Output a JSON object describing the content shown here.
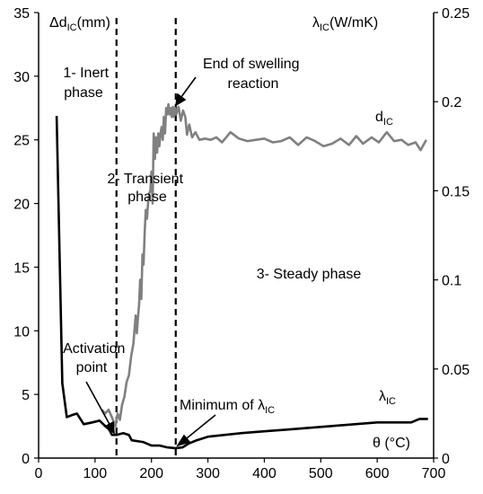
{
  "chart_data": {
    "type": "line",
    "x_axis": {
      "range": [
        0,
        700
      ],
      "ticks": [
        0,
        100,
        200,
        300,
        400,
        500,
        600,
        700
      ]
    },
    "y_left": {
      "label": "Δd",
      "label_sub": "IC",
      "label_unit": "(mm)",
      "range": [
        0,
        35
      ],
      "ticks": [
        0,
        5,
        10,
        15,
        20,
        25,
        30,
        35
      ]
    },
    "y_right": {
      "label": "λ",
      "label_sub": "IC",
      "label_unit": "(W/mK)",
      "range": [
        0,
        0.25
      ],
      "ticks": [
        "0",
        "0.05",
        "0.1",
        "0.15",
        "0.2",
        "0.25"
      ]
    },
    "grid": false,
    "vlines": [
      138,
      243
    ],
    "series": [
      {
        "name": "d",
        "name_sub": "IC",
        "axis": "left",
        "color": "#808080",
        "points": [
          [
            112,
            3.8
          ],
          [
            118,
            3.5
          ],
          [
            124,
            3.8
          ],
          [
            130,
            3.2
          ],
          [
            136,
            2.5
          ],
          [
            140,
            3.5
          ],
          [
            144,
            3.0
          ],
          [
            148,
            4.2
          ],
          [
            152,
            4.8
          ],
          [
            156,
            6.0
          ],
          [
            160,
            6.5
          ],
          [
            164,
            8.0
          ],
          [
            168,
            9.0
          ],
          [
            172,
            11.2
          ],
          [
            174,
            9.8
          ],
          [
            176,
            11.0
          ],
          [
            178,
            12.0
          ],
          [
            180,
            14.0
          ],
          [
            182,
            12.5
          ],
          [
            184,
            16.0
          ],
          [
            186,
            15.2
          ],
          [
            188,
            17.8
          ],
          [
            190,
            19.5
          ],
          [
            192,
            18.8
          ],
          [
            194,
            20.0
          ],
          [
            196,
            20.8
          ],
          [
            198,
            21.0
          ],
          [
            200,
            22.5
          ],
          [
            202,
            20.0
          ],
          [
            204,
            25.5
          ],
          [
            206,
            23.5
          ],
          [
            208,
            25.2
          ],
          [
            210,
            24.0
          ],
          [
            212,
            25.5
          ],
          [
            214,
            24.5
          ],
          [
            216,
            25.5
          ],
          [
            218,
            26.0
          ],
          [
            220,
            25.0
          ],
          [
            222,
            26.8
          ],
          [
            224,
            25.5
          ],
          [
            226,
            27.5
          ],
          [
            228,
            27.0
          ],
          [
            230,
            27.8
          ],
          [
            232,
            27.0
          ],
          [
            234,
            27.5
          ],
          [
            236,
            26.8
          ],
          [
            238,
            27.6
          ],
          [
            240,
            26.8
          ],
          [
            242,
            27.5
          ],
          [
            244,
            27.0
          ],
          [
            248,
            27.6
          ],
          [
            252,
            26.5
          ],
          [
            256,
            27.3
          ],
          [
            260,
            26.8
          ],
          [
            263,
            25.4
          ],
          [
            267,
            26.2
          ],
          [
            272,
            25.2
          ],
          [
            278,
            25.6
          ],
          [
            285,
            25.0
          ],
          [
            295,
            25.1
          ],
          [
            305,
            25.0
          ],
          [
            315,
            25.2
          ],
          [
            325,
            24.8
          ],
          [
            340,
            25.6
          ],
          [
            355,
            25.1
          ],
          [
            370,
            24.9
          ],
          [
            385,
            25.0
          ],
          [
            400,
            25.1
          ],
          [
            415,
            24.8
          ],
          [
            430,
            24.9
          ],
          [
            445,
            25.2
          ],
          [
            460,
            24.6
          ],
          [
            475,
            25.2
          ],
          [
            490,
            24.9
          ],
          [
            505,
            24.5
          ],
          [
            520,
            24.7
          ],
          [
            535,
            25.1
          ],
          [
            550,
            24.6
          ],
          [
            563,
            25.3
          ],
          [
            575,
            24.7
          ],
          [
            590,
            25.2
          ],
          [
            603,
            24.8
          ],
          [
            617,
            25.6
          ],
          [
            630,
            24.9
          ],
          [
            643,
            25.0
          ],
          [
            655,
            24.6
          ],
          [
            668,
            24.8
          ],
          [
            677,
            24.2
          ],
          [
            687,
            25.0
          ]
        ]
      },
      {
        "name": "λ",
        "name_sub": "IC",
        "axis": "right",
        "color": "#000000",
        "points": [
          [
            32,
            0.192
          ],
          [
            42,
            0.042
          ],
          [
            50,
            0.023
          ],
          [
            58,
            0.024
          ],
          [
            68,
            0.025
          ],
          [
            80,
            0.019
          ],
          [
            95,
            0.02
          ],
          [
            108,
            0.021
          ],
          [
            118,
            0.018
          ],
          [
            125,
            0.016
          ],
          [
            130,
            0.013
          ],
          [
            138,
            0.013
          ],
          [
            150,
            0.014
          ],
          [
            160,
            0.013
          ],
          [
            165,
            0.01
          ],
          [
            185,
            0.009
          ],
          [
            200,
            0.007
          ],
          [
            215,
            0.007
          ],
          [
            228,
            0.006
          ],
          [
            243,
            0.0055
          ],
          [
            255,
            0.006
          ],
          [
            265,
            0.008
          ],
          [
            280,
            0.01
          ],
          [
            300,
            0.012
          ],
          [
            330,
            0.013
          ],
          [
            360,
            0.014
          ],
          [
            400,
            0.015
          ],
          [
            440,
            0.016
          ],
          [
            480,
            0.017
          ],
          [
            520,
            0.018
          ],
          [
            560,
            0.019
          ],
          [
            600,
            0.02
          ],
          [
            640,
            0.02
          ],
          [
            660,
            0.02
          ],
          [
            675,
            0.022
          ],
          [
            690,
            0.022
          ]
        ]
      }
    ],
    "annotations": [
      {
        "name": "inert-phase-label",
        "lines": [
          "1- Inert",
          "phase"
        ]
      },
      {
        "name": "transient-phase-label",
        "lines": [
          "2- Transient",
          "phase"
        ]
      },
      {
        "name": "steady-phase-label",
        "lines": [
          "3- Steady phase"
        ]
      },
      {
        "name": "end-swelling-label",
        "lines": [
          "End of swelling",
          "reaction"
        ]
      },
      {
        "name": "activation-point-label",
        "lines": [
          "Activation",
          "point"
        ]
      },
      {
        "name": "minimum-lambda-label",
        "prefix": "Minimum  of λ",
        "sub": "IC"
      },
      {
        "name": "theta-label",
        "lines": [
          "θ (°C)"
        ]
      }
    ]
  }
}
